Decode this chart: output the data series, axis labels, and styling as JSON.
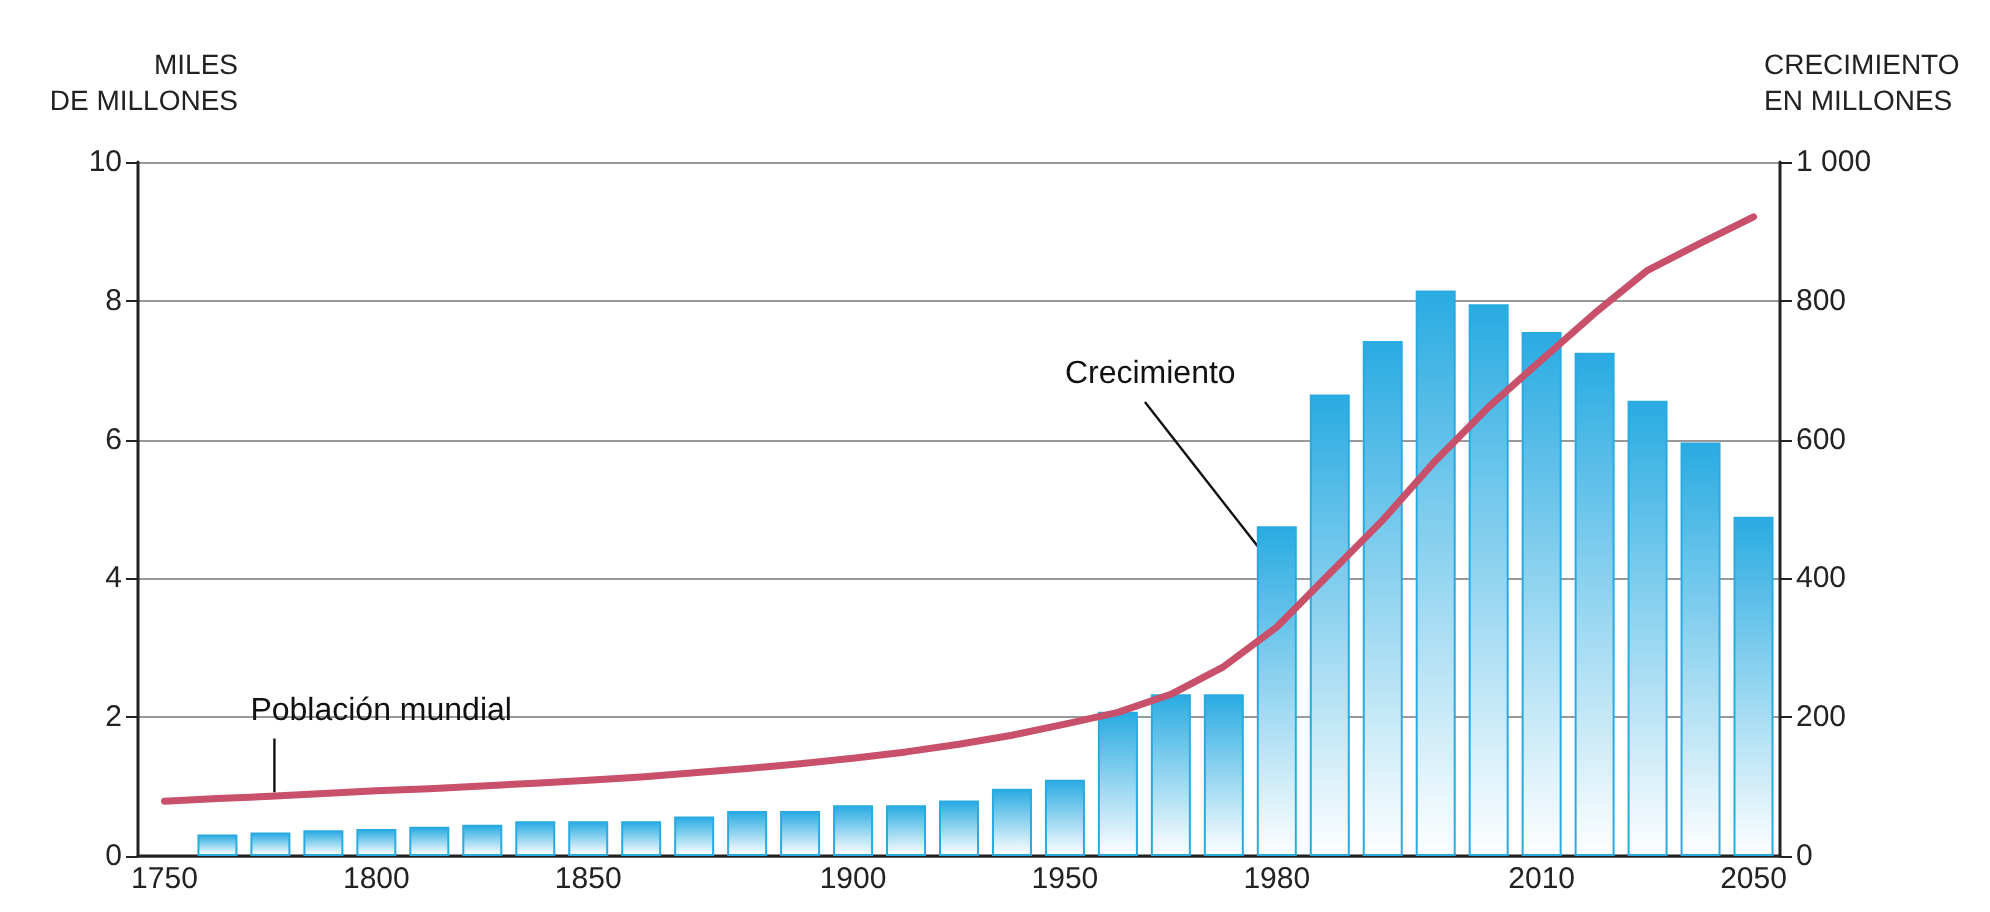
{
  "chart_data": {
    "type": "bar",
    "ylabel": "MILES\nDE MILLONES",
    "y2label": "CRECIMIENTO\nEN MILLONES",
    "categories": [
      "1750",
      null,
      null,
      null,
      "1800",
      null,
      null,
      null,
      "1850",
      null,
      null,
      null,
      null,
      "1900",
      null,
      null,
      null,
      "1950",
      null,
      null,
      null,
      "1980",
      null,
      null,
      null,
      null,
      "2010",
      null,
      null,
      null,
      "2050"
    ],
    "series": [
      {
        "name": "Crecimiento",
        "axis": "y2",
        "color": "#29abe2",
        "values": [
          null,
          31,
          34,
          37,
          39,
          42,
          45,
          50,
          50,
          50,
          57,
          65,
          65,
          73,
          73,
          80,
          97,
          110,
          208,
          233,
          233,
          475,
          665,
          742,
          815,
          795,
          755,
          725,
          656,
          596,
          489
        ]
      },
      {
        "name": "Población mundial",
        "type": "line",
        "color": "#c8506a",
        "values": [
          0.79,
          0.83,
          0.86,
          0.9,
          0.94,
          0.97,
          1.01,
          1.05,
          1.09,
          1.14,
          1.2,
          1.26,
          1.33,
          1.41,
          1.5,
          1.61,
          1.74,
          1.9,
          2.07,
          2.33,
          2.73,
          3.3,
          4.07,
          4.84,
          5.7,
          6.47,
          7.15,
          7.82,
          8.44,
          8.83,
          9.21
        ]
      }
    ],
    "ylim": [
      0,
      10
    ],
    "yticks": [
      0,
      2,
      4,
      6,
      8,
      10
    ],
    "y2lim": [
      0,
      1000
    ],
    "y2ticks": [
      0,
      200,
      400,
      600,
      800,
      {
        "value": 1000,
        "label": "1 000"
      }
    ],
    "grid": "y",
    "legend": false,
    "marker": "none",
    "line_style": "solid"
  }
}
